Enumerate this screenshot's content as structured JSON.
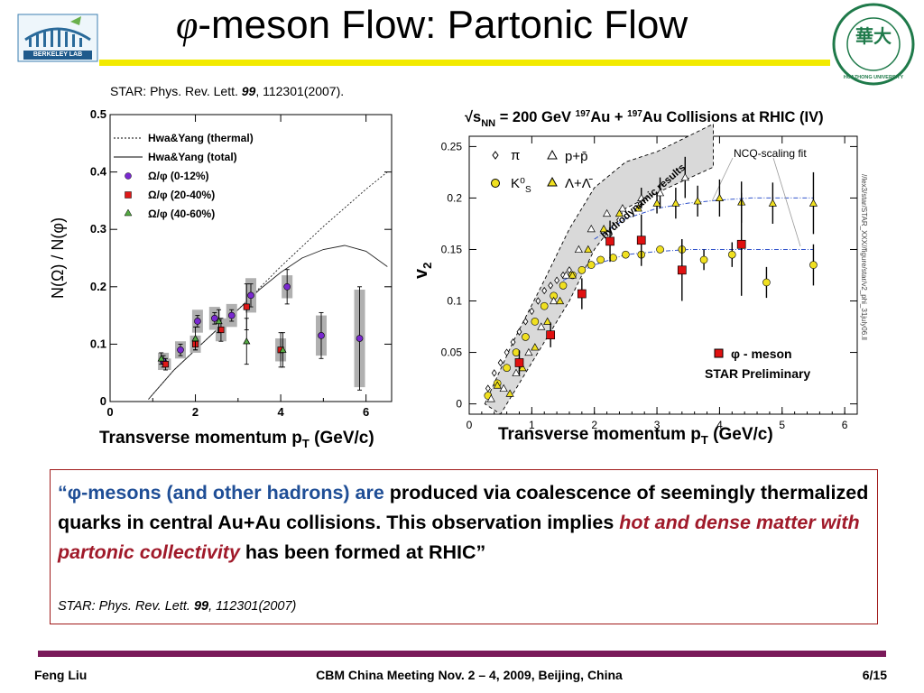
{
  "slide": {
    "title_symbol": "φ",
    "title_rest": "-meson Flow: Partonic Flow",
    "ref_prefix": "STAR: Phys. Rev. Lett. ",
    "ref_volume": "99",
    "ref_suffix": ", 112301(2007)."
  },
  "logos": {
    "left_label": "BERKELEY LAB",
    "right_text": "HUAZHONG UNIVERSITY",
    "right_glyph": "華大"
  },
  "quote": {
    "open": "“",
    "blue_part": "φ-mesons (and other hadrons) are",
    "black_part1": " produced via coalescence of seemingly thermalized quarks in central Au+Au collisions. This observation implies ",
    "red_part": "hot and dense matter with partonic collectivity",
    "black_part2": " has been formed at RHIC”",
    "ref_prefix": "STAR: Phys. Rev. Lett. ",
    "ref_volume": "99",
    "ref_suffix": ", 112301(2007)"
  },
  "footer": {
    "left": "Feng Liu",
    "center": "CBM China Meeting Nov. 2 – 4, 2009, Beijing, China",
    "right": "6/15"
  },
  "colors": {
    "title_rule": "#f2ea00",
    "footer_rule": "#7a1a5a",
    "quote_border": "#a01a1a",
    "quote_blue": "#1f4e96",
    "quote_red": "#a01a2a"
  },
  "chart_data": [
    {
      "type": "scatter",
      "xlabel": "Transverse momentum p",
      "xlabel_sub": "T",
      "xlabel_unit": " (GeV/c)",
      "ylabel": "N(Ω) / N(φ)",
      "xlim": [
        0,
        6.6
      ],
      "ylim": [
        0,
        0.5
      ],
      "xticks": [
        0,
        2,
        4,
        6
      ],
      "yticks": [
        0,
        0.1,
        0.2,
        0.3,
        0.4,
        0.5
      ],
      "ytick_labels": [
        "0",
        "0.1",
        "0.2",
        "0.3",
        "0.4",
        "0.5"
      ],
      "legend": {
        "position": "top-left",
        "entries": [
          "Hwa&Yang (thermal)",
          "Hwa&Yang (total)",
          "Ω/φ (0-12%)",
          "Ω/φ (20-40%)",
          "Ω/φ (40-60%)"
        ]
      },
      "curves": [
        {
          "name": "Hwa&Yang (thermal)",
          "style": "dotted",
          "x": [
            0.9,
            1.5,
            2.0,
            3.0,
            4.0,
            5.0,
            6.0,
            6.5
          ],
          "y": [
            0.004,
            0.055,
            0.09,
            0.16,
            0.235,
            0.305,
            0.37,
            0.4
          ]
        },
        {
          "name": "Hwa&Yang (total)",
          "style": "solid",
          "x": [
            0.9,
            1.5,
            2.0,
            2.5,
            3.0,
            3.5,
            4.0,
            4.5,
            5.0,
            5.5,
            6.0,
            6.5
          ],
          "y": [
            0.004,
            0.055,
            0.09,
            0.125,
            0.16,
            0.195,
            0.225,
            0.25,
            0.265,
            0.272,
            0.262,
            0.235
          ]
        }
      ],
      "series": [
        {
          "name": "Ω/φ (0-12%)",
          "color": "#7a28d0",
          "marker": "circle",
          "x": [
            1.25,
            1.65,
            2.05,
            2.45,
            2.85,
            3.3,
            4.15,
            4.95,
            5.85
          ],
          "y": [
            0.07,
            0.09,
            0.14,
            0.145,
            0.15,
            0.185,
            0.2,
            0.115,
            0.11
          ],
          "err": [
            0.01,
            0.01,
            0.01,
            0.01,
            0.01,
            0.02,
            0.03,
            0.04,
            0.09
          ],
          "sys": [
            0.015,
            0.015,
            0.02,
            0.02,
            0.02,
            0.03,
            0.02,
            0.035,
            0.085
          ]
        },
        {
          "name": "Ω/φ (20-40%)",
          "color": "#e01818",
          "marker": "square",
          "x": [
            1.3,
            2.0,
            2.6,
            3.2,
            4.0
          ],
          "y": [
            0.065,
            0.1,
            0.125,
            0.165,
            0.09
          ],
          "err": [
            0.01,
            0.01,
            0.02,
            0.04,
            0.03
          ],
          "sys": [
            0.01,
            0.015,
            0.02,
            0.0,
            0.02
          ]
        },
        {
          "name": "Ω/φ (40-60%)",
          "color": "#55aa44",
          "marker": "triangle",
          "x": [
            1.2,
            2.0,
            2.55,
            3.2,
            4.05
          ],
          "y": [
            0.075,
            0.11,
            0.14,
            0.105,
            0.09
          ],
          "err": [
            0.01,
            0.02,
            0.02,
            0.04,
            0.03
          ],
          "sys": [
            0.0,
            0.0,
            0.0,
            0.0,
            0.0
          ]
        }
      ]
    },
    {
      "type": "scatter",
      "title": "√s_NN = 200 GeV ¹⁹⁷Au + ¹⁹⁷Au Collisions at RHIC (IV)",
      "title_part1": "√s",
      "title_part2": "NN",
      "title_part3": " = 200 GeV ",
      "title_part4": "197",
      "title_part5": "Au + ",
      "title_part6": "197",
      "title_part7": "Au Collisions at RHIC (IV)",
      "xlabel": "Transverse momentum p",
      "xlabel_sub": "T",
      "xlabel_unit": " (GeV/c)",
      "ylabel": "v",
      "ylabel_sub": "2",
      "xlim": [
        0,
        6.2
      ],
      "ylim": [
        -0.01,
        0.26
      ],
      "xticks": [
        0,
        1,
        2,
        3,
        4,
        5,
        6
      ],
      "yticks": [
        0,
        0.05,
        0.1,
        0.15,
        0.2,
        0.25
      ],
      "ytick_labels": [
        "0",
        "0.05",
        "0.1",
        "0.15",
        "0.2",
        "0.25"
      ],
      "legend_labels": {
        "pi": "π",
        "ppbar": "p+p̄",
        "ks0": "K⁰",
        "ks0_sub": "S",
        "lambda": "Λ+Λ̄",
        "phi": "φ - meson"
      },
      "annotations": {
        "hydro": "hydrodynamic results",
        "ncq": "NCQ-scaling fit",
        "preliminary": "STAR Preliminary",
        "side_path": "//lex3/star/STAR_XXX//figure/star/v2_phi_31july06.ll"
      },
      "series": [
        {
          "name": "π",
          "color": "#000000",
          "marker": "diamond",
          "x": [
            0.3,
            0.4,
            0.5,
            0.6,
            0.7,
            0.8,
            0.9,
            1.0,
            1.1,
            1.2,
            1.3,
            1.4,
            1.5,
            1.6
          ],
          "y": [
            0.015,
            0.03,
            0.04,
            0.05,
            0.06,
            0.07,
            0.08,
            0.09,
            0.1,
            0.11,
            0.115,
            0.12,
            0.125,
            0.13
          ]
        },
        {
          "name": "K⁰S",
          "color": "#f0e020",
          "marker": "circle",
          "x": [
            0.3,
            0.45,
            0.6,
            0.75,
            0.9,
            1.05,
            1.2,
            1.35,
            1.5,
            1.65,
            1.8,
            1.95,
            2.1,
            2.3,
            2.5,
            2.75,
            3.05,
            3.4,
            3.75,
            4.2,
            4.75,
            5.5
          ],
          "y": [
            0.008,
            0.02,
            0.035,
            0.05,
            0.065,
            0.08,
            0.095,
            0.105,
            0.115,
            0.125,
            0.13,
            0.135,
            0.14,
            0.142,
            0.145,
            0.145,
            0.15,
            0.15,
            0.14,
            0.145,
            0.118,
            0.135
          ],
          "err": [
            0,
            0,
            0,
            0,
            0,
            0,
            0,
            0,
            0,
            0,
            0,
            0,
            0,
            0,
            0,
            0,
            0,
            0.01,
            0.01,
            0.012,
            0.015,
            0.02
          ]
        },
        {
          "name": "p+p̄",
          "color": "#ffffff",
          "marker": "triangle",
          "x": [
            0.35,
            0.55,
            0.75,
            0.95,
            1.15,
            1.35,
            1.55,
            1.75,
            1.95,
            2.2,
            2.45,
            2.75,
            3.05,
            3.45
          ],
          "y": [
            0.005,
            0.015,
            0.03,
            0.05,
            0.075,
            0.1,
            0.125,
            0.15,
            0.17,
            0.185,
            0.19,
            0.2,
            0.205,
            0.22
          ],
          "err": [
            0,
            0,
            0,
            0,
            0,
            0,
            0,
            0,
            0,
            0,
            0,
            0.01,
            0.015,
            0.02
          ]
        },
        {
          "name": "Λ+Λ̄",
          "color": "#f0e020",
          "marker": "triangle",
          "x": [
            0.45,
            0.65,
            0.85,
            1.05,
            1.25,
            1.45,
            1.65,
            1.9,
            2.15,
            2.4,
            2.7,
            3.0,
            3.3,
            3.65,
            4.0,
            4.35,
            4.85,
            5.5
          ],
          "y": [
            0.018,
            0.01,
            0.035,
            0.055,
            0.08,
            0.1,
            0.125,
            0.15,
            0.17,
            0.185,
            0.19,
            0.195,
            0.195,
            0.197,
            0.2,
            0.196,
            0.195,
            0.195
          ],
          "err": [
            0,
            0,
            0,
            0,
            0,
            0,
            0,
            0,
            0,
            0,
            0,
            0.01,
            0.015,
            0.015,
            0.018,
            0.02,
            0.02,
            0.03
          ]
        },
        {
          "name": "φ - meson",
          "color": "#e01010",
          "marker": "square",
          "x": [
            0.8,
            1.3,
            1.8,
            2.25,
            2.75,
            3.4,
            4.35
          ],
          "y": [
            0.04,
            0.067,
            0.107,
            0.158,
            0.159,
            0.13,
            0.155
          ],
          "err": [
            0.012,
            0.012,
            0.015,
            0.02,
            0.025,
            0.03,
            0.05
          ]
        }
      ],
      "fits": [
        {
          "name": "NCQ-scaling fit (baryons)",
          "x": [
            2.0,
            2.5,
            3.0,
            3.5,
            4.0,
            4.5,
            5.0,
            5.5
          ],
          "y": [
            0.16,
            0.18,
            0.19,
            0.195,
            0.198,
            0.2,
            0.2,
            0.2
          ]
        },
        {
          "name": "NCQ-scaling fit (mesons)",
          "x": [
            1.5,
            2.0,
            2.5,
            3.0,
            3.5,
            4.0,
            4.5,
            5.0,
            5.5
          ],
          "y": [
            0.12,
            0.135,
            0.145,
            0.148,
            0.15,
            0.15,
            0.15,
            0.15,
            0.15
          ]
        }
      ]
    }
  ]
}
